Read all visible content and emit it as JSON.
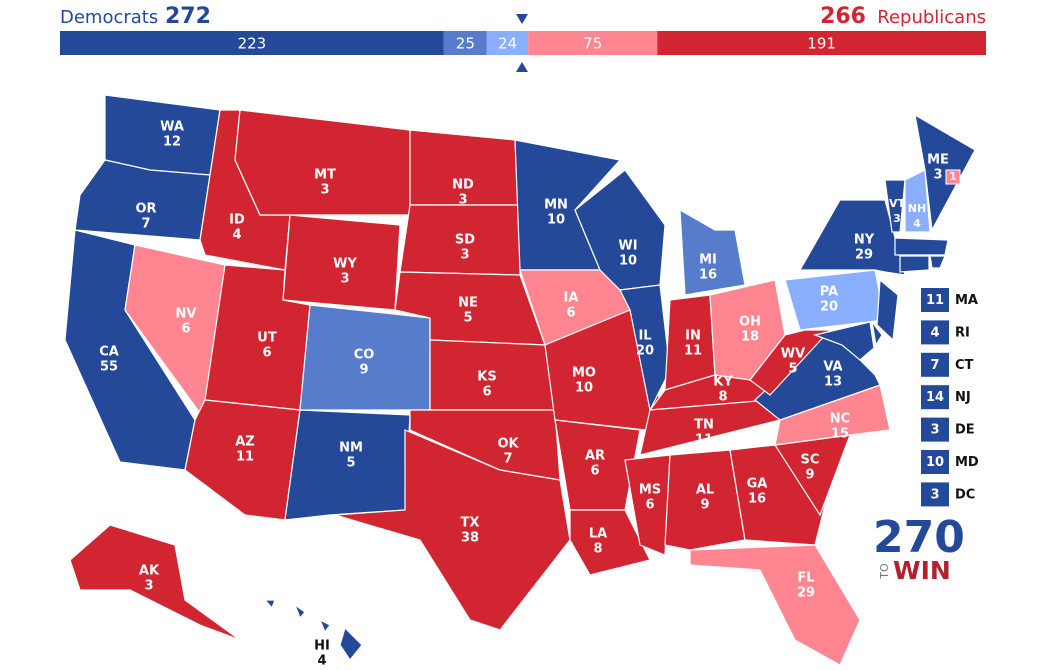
{
  "header": {
    "dem_label": "Democrats",
    "dem_total": 272,
    "rep_total": 266,
    "rep_label": "Republicans"
  },
  "bar": {
    "segments": [
      {
        "value": 223,
        "color": "#244999"
      },
      {
        "value": 25,
        "color": "#587ccc"
      },
      {
        "value": 24,
        "color": "#8aafff"
      },
      {
        "value": 75,
        "color": "#ff8690"
      },
      {
        "value": 191,
        "color": "#d22532"
      }
    ]
  },
  "states": [
    {
      "abbr": "WA",
      "ev": 12,
      "color": "#244999"
    },
    {
      "abbr": "OR",
      "ev": 7,
      "color": "#244999"
    },
    {
      "abbr": "CA",
      "ev": 55,
      "color": "#244999"
    },
    {
      "abbr": "NV",
      "ev": 6,
      "color": "#ff8690"
    },
    {
      "abbr": "ID",
      "ev": 4,
      "color": "#d22532"
    },
    {
      "abbr": "MT",
      "ev": 3,
      "color": "#d22532"
    },
    {
      "abbr": "WY",
      "ev": 3,
      "color": "#d22532"
    },
    {
      "abbr": "UT",
      "ev": 6,
      "color": "#d22532"
    },
    {
      "abbr": "CO",
      "ev": 9,
      "color": "#587ccc"
    },
    {
      "abbr": "AZ",
      "ev": 11,
      "color": "#d22532"
    },
    {
      "abbr": "NM",
      "ev": 5,
      "color": "#244999"
    },
    {
      "abbr": "ND",
      "ev": 3,
      "color": "#d22532"
    },
    {
      "abbr": "SD",
      "ev": 3,
      "color": "#d22532"
    },
    {
      "abbr": "NE",
      "ev": 5,
      "color": "#d22532"
    },
    {
      "abbr": "KS",
      "ev": 6,
      "color": "#d22532"
    },
    {
      "abbr": "OK",
      "ev": 7,
      "color": "#d22532"
    },
    {
      "abbr": "TX",
      "ev": 38,
      "color": "#d22532"
    },
    {
      "abbr": "MN",
      "ev": 10,
      "color": "#244999"
    },
    {
      "abbr": "IA",
      "ev": 6,
      "color": "#ff8690"
    },
    {
      "abbr": "MO",
      "ev": 10,
      "color": "#d22532"
    },
    {
      "abbr": "AR",
      "ev": 6,
      "color": "#d22532"
    },
    {
      "abbr": "LA",
      "ev": 8,
      "color": "#d22532"
    },
    {
      "abbr": "WI",
      "ev": 10,
      "color": "#244999"
    },
    {
      "abbr": "IL",
      "ev": 20,
      "color": "#244999"
    },
    {
      "abbr": "MI",
      "ev": 16,
      "color": "#587ccc"
    },
    {
      "abbr": "IN",
      "ev": 11,
      "color": "#d22532"
    },
    {
      "abbr": "OH",
      "ev": 18,
      "color": "#ff8690"
    },
    {
      "abbr": "KY",
      "ev": 8,
      "color": "#d22532"
    },
    {
      "abbr": "TN",
      "ev": 11,
      "color": "#d22532"
    },
    {
      "abbr": "MS",
      "ev": 6,
      "color": "#d22532"
    },
    {
      "abbr": "AL",
      "ev": 9,
      "color": "#d22532"
    },
    {
      "abbr": "GA",
      "ev": 16,
      "color": "#d22532"
    },
    {
      "abbr": "FL",
      "ev": 29,
      "color": "#ff8690"
    },
    {
      "abbr": "SC",
      "ev": 9,
      "color": "#d22532"
    },
    {
      "abbr": "NC",
      "ev": 15,
      "color": "#ff8690"
    },
    {
      "abbr": "VA",
      "ev": 13,
      "color": "#244999"
    },
    {
      "abbr": "WV",
      "ev": 5,
      "color": "#d22532"
    },
    {
      "abbr": "PA",
      "ev": 20,
      "color": "#8aafff"
    },
    {
      "abbr": "NY",
      "ev": 29,
      "color": "#244999"
    },
    {
      "abbr": "VT",
      "ev": 3,
      "color": "#244999"
    },
    {
      "abbr": "NH",
      "ev": 4,
      "color": "#8aafff"
    },
    {
      "abbr": "ME",
      "ev": 3,
      "color": "#244999"
    },
    {
      "abbr": null,
      "ev": 1,
      "color": "#ff8690"
    },
    {
      "abbr": "MA",
      "ev": 11,
      "color": "#244999"
    },
    {
      "abbr": "RI",
      "ev": 4,
      "color": "#244999"
    },
    {
      "abbr": "CT",
      "ev": 7,
      "color": "#244999"
    },
    {
      "abbr": "NJ",
      "ev": 14,
      "color": "#244999"
    },
    {
      "abbr": "DE",
      "ev": 3,
      "color": "#244999"
    },
    {
      "abbr": "MD",
      "ev": 10,
      "color": "#244999"
    },
    {
      "abbr": "DC",
      "ev": 3,
      "color": "#244999"
    },
    {
      "abbr": "AK",
      "ev": 3,
      "color": "#d22532"
    },
    {
      "abbr": "HI",
      "ev": 4,
      "color": "#244999"
    }
  ],
  "logo": {
    "number": "270",
    "to": "TO",
    "win": "WIN"
  }
}
